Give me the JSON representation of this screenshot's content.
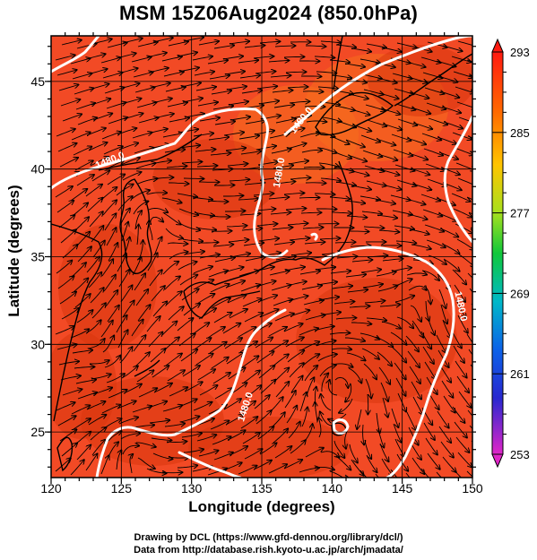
{
  "title": "MSM 15Z06Aug2024 (850.0hPa)",
  "axes": {
    "xlabel": "Longitude (degrees)",
    "ylabel": "Latitude  (degrees)",
    "x_ticks": [
      "120",
      "125",
      "130",
      "135",
      "140",
      "145",
      "150"
    ],
    "y_ticks": [
      "25",
      "30",
      "35",
      "40",
      "45"
    ],
    "xlim": [
      120,
      150
    ],
    "ylim": [
      22.4,
      47.6
    ]
  },
  "colorbar": {
    "labels": [
      "293",
      "285",
      "277",
      "269",
      "261",
      "253"
    ],
    "range": [
      253,
      293
    ]
  },
  "contours": {
    "labels": [
      "1480.0",
      "1480.0",
      "1480.0",
      "1480.0",
      "1480.0"
    ]
  },
  "credits": {
    "line1": "Drawing by DCL (https://www.gfd-dennou.org/library/dcl/)",
    "line2": "Data from http://database.rish.kyoto-u.ac.jp/arch/jmadata/"
  },
  "colors": {
    "field": "#f24a25",
    "field_dark": "#d8360e",
    "field_warm": "#f66e1e",
    "contour": "#ffffff",
    "coast": "#000000"
  },
  "gridlines": true
}
